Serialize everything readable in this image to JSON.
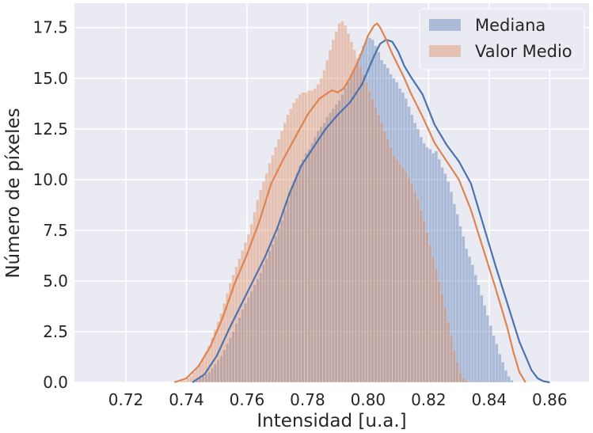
{
  "chart_data": {
    "type": "histogram",
    "title": "",
    "xlabel": "Intensidad [u.a.]",
    "ylabel": "Número de píxeles",
    "xlim": [
      0.703,
      0.873
    ],
    "ylim": [
      0,
      18.7
    ],
    "xticks": [
      0.72,
      0.74,
      0.76,
      0.78,
      0.8,
      0.82,
      0.84,
      0.86
    ],
    "xtick_labels": [
      "0.72",
      "0.74",
      "0.76",
      "0.78",
      "0.80",
      "0.82",
      "0.84",
      "0.86"
    ],
    "yticks": [
      0,
      2.5,
      5,
      7.5,
      10,
      12.5,
      15,
      17.5
    ],
    "ytick_labels": [
      "0.0",
      "2.5",
      "5.0",
      "7.5",
      "10.0",
      "12.5",
      "15.0",
      "17.5"
    ],
    "grid": true,
    "legend_position": "top-right",
    "series": [
      {
        "name": "Mediana",
        "color": "#4c72b0",
        "kde_x": [
          0.742,
          0.746,
          0.75,
          0.754,
          0.758,
          0.762,
          0.766,
          0.77,
          0.774,
          0.778,
          0.782,
          0.786,
          0.79,
          0.794,
          0.798,
          0.8,
          0.802,
          0.804,
          0.806,
          0.808,
          0.81,
          0.812,
          0.814,
          0.818,
          0.822,
          0.826,
          0.83,
          0.834,
          0.838,
          0.842,
          0.846,
          0.85,
          0.854,
          0.856,
          0.858,
          0.86
        ],
        "kde_y": [
          0.0,
          0.4,
          1.3,
          2.6,
          3.8,
          5.0,
          6.2,
          7.6,
          9.3,
          10.7,
          11.6,
          12.5,
          13.2,
          13.8,
          14.7,
          15.4,
          16.1,
          16.7,
          16.9,
          16.8,
          16.3,
          15.6,
          15.1,
          14.2,
          12.7,
          11.7,
          10.9,
          9.8,
          7.8,
          5.8,
          3.9,
          2.0,
          0.6,
          0.2,
          0.05,
          0.0
        ],
        "hist_bins_start": 0.742,
        "hist_bin_width": 0.001,
        "hist_values": [
          0.1,
          0.1,
          0.2,
          0.3,
          0.4,
          0.5,
          0.7,
          0.9,
          1.1,
          1.3,
          1.6,
          1.9,
          2.2,
          2.5,
          2.9,
          3.2,
          3.6,
          3.9,
          4.2,
          4.5,
          4.8,
          5.1,
          5.4,
          5.8,
          6.1,
          6.5,
          6.8,
          7.2,
          7.6,
          8.0,
          8.5,
          9.0,
          9.5,
          9.9,
          10.3,
          10.7,
          11.0,
          11.3,
          11.5,
          11.8,
          12.1,
          12.4,
          12.6,
          12.8,
          13.1,
          13.3,
          13.5,
          13.7,
          13.9,
          14.2,
          14.5,
          14.8,
          15.2,
          15.5,
          15.8,
          16.2,
          16.6,
          16.9,
          17.0,
          16.9,
          16.6,
          16.3,
          15.9,
          15.7,
          15.5,
          15.2,
          15.0,
          14.8,
          14.5,
          14.3,
          14.0,
          13.6,
          13.2,
          12.8,
          12.5,
          12.1,
          11.8,
          11.6,
          11.5,
          11.3,
          11.4,
          11.0,
          10.6,
          10.3,
          9.9,
          9.4,
          8.8,
          8.3,
          7.7,
          7.2,
          6.6,
          6.2,
          5.8,
          5.3,
          4.8,
          4.3,
          3.8,
          3.3,
          2.8,
          2.3,
          1.9,
          1.4,
          1.0,
          0.6,
          0.3,
          0.1
        ]
      },
      {
        "name": "Valor Medio",
        "color": "#dd8452",
        "kde_x": [
          0.736,
          0.74,
          0.744,
          0.748,
          0.752,
          0.756,
          0.76,
          0.764,
          0.768,
          0.772,
          0.776,
          0.78,
          0.784,
          0.788,
          0.79,
          0.792,
          0.794,
          0.796,
          0.798,
          0.8,
          0.802,
          0.803,
          0.804,
          0.806,
          0.808,
          0.81,
          0.812,
          0.814,
          0.818,
          0.822,
          0.826,
          0.83,
          0.834,
          0.838,
          0.842,
          0.846,
          0.848,
          0.85,
          0.852
        ],
        "kde_y": [
          0.0,
          0.2,
          0.8,
          1.8,
          3.2,
          4.9,
          6.3,
          7.9,
          9.8,
          11.0,
          12.1,
          13.2,
          14.0,
          14.4,
          14.3,
          14.5,
          15.0,
          15.6,
          16.3,
          17.1,
          17.6,
          17.7,
          17.5,
          16.9,
          16.2,
          15.6,
          15.0,
          14.3,
          13.1,
          11.8,
          10.9,
          10.0,
          8.5,
          6.6,
          4.7,
          2.7,
          1.5,
          0.5,
          0.0
        ],
        "hist_bins_start": 0.738,
        "hist_bin_width": 0.001,
        "hist_values": [
          0.1,
          0.1,
          0.2,
          0.3,
          0.5,
          0.7,
          0.9,
          1.2,
          1.5,
          1.8,
          2.2,
          2.6,
          3.0,
          3.4,
          3.9,
          4.4,
          4.9,
          5.3,
          5.7,
          6.1,
          6.5,
          6.9,
          7.3,
          7.8,
          8.4,
          9.0,
          9.5,
          9.9,
          10.3,
          10.8,
          11.2,
          11.6,
          12.0,
          12.4,
          12.8,
          13.2,
          13.5,
          13.8,
          14.0,
          14.2,
          14.3,
          14.3,
          14.4,
          14.4,
          14.5,
          14.7,
          15.0,
          15.4,
          15.9,
          16.4,
          16.9,
          17.3,
          17.7,
          17.8,
          17.6,
          17.2,
          16.8,
          16.4,
          16.0,
          15.6,
          15.2,
          14.8,
          14.4,
          14.0,
          13.6,
          13.2,
          12.8,
          12.4,
          12.0,
          11.6,
          11.2,
          11.0,
          10.8,
          10.6,
          10.4,
          10.1,
          9.8,
          9.4,
          9.0,
          8.5,
          8.0,
          7.4,
          6.8,
          6.2,
          5.6,
          5.0,
          4.4,
          3.7,
          3.0,
          2.3,
          1.6,
          1.0,
          0.5,
          0.2,
          0.1
        ]
      }
    ]
  }
}
